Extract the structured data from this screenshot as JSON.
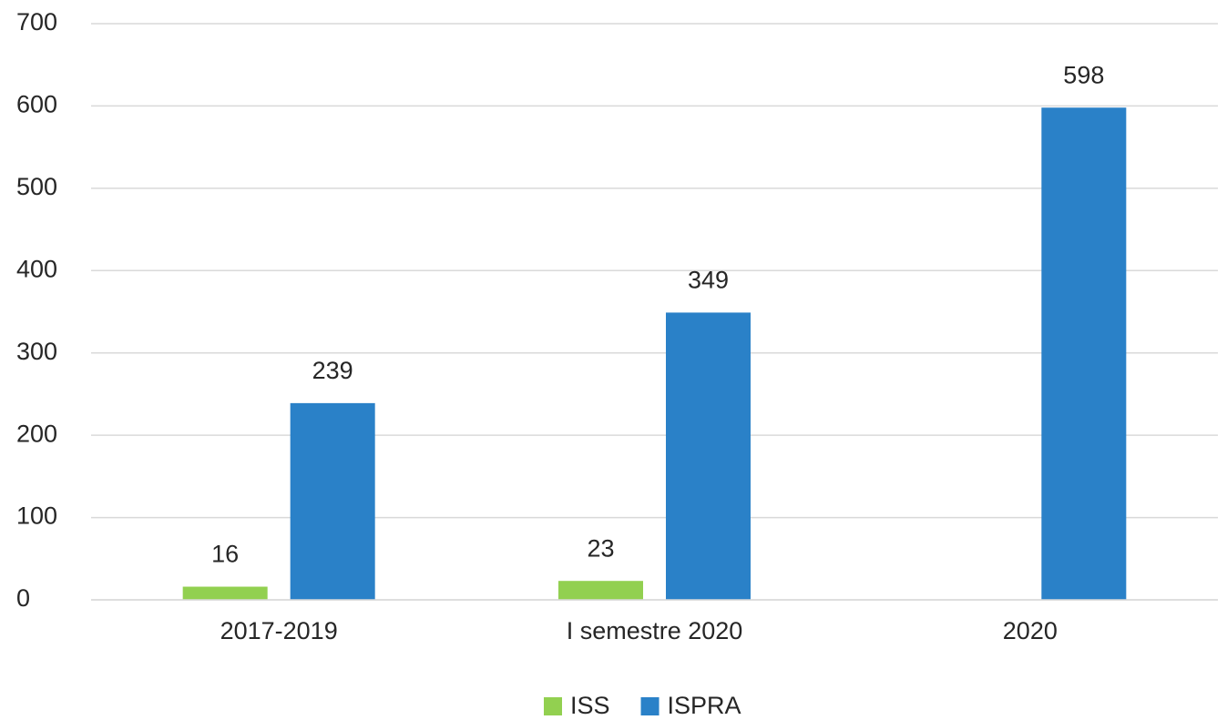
{
  "chart_data": {
    "type": "bar",
    "categories": [
      "2017-2019",
      "I semestre 2020",
      "2020"
    ],
    "series": [
      {
        "name": "ISS",
        "color": "#92d050",
        "values": [
          16,
          23,
          null
        ]
      },
      {
        "name": "ISPRA",
        "color": "#2a81c8",
        "values": [
          239,
          349,
          598
        ]
      }
    ],
    "ylim": [
      0,
      700
    ],
    "yticks": [
      0,
      100,
      200,
      300,
      400,
      500,
      600,
      700
    ],
    "grid": true,
    "legend": "bottom"
  }
}
